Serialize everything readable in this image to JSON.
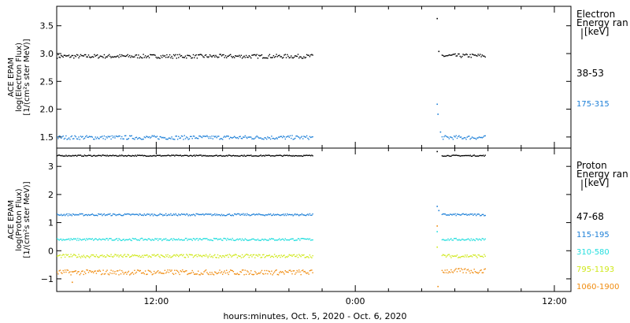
{
  "xlabel": "hours:minutes, Oct.  5, 2020 - Oct.  6, 2020",
  "colors": {
    "black": "#000000",
    "blue": "#1e80d8",
    "cyan": "#22dede",
    "yellow": "#cfe81a",
    "orange": "#f08c10"
  },
  "chart_data": [
    {
      "type": "scatter",
      "panel": "electron",
      "ylabel_lines": [
        "ACE EPAM",
        "log(Electron Flux)",
        "[1/(cm²s ster MeV)]"
      ],
      "ylim": [
        1.3,
        3.85
      ],
      "yticks": [
        1.5,
        2.0,
        2.5,
        3.0,
        3.5
      ],
      "ytick_labels": [
        "1.5",
        "2.0",
        "2.5",
        "3.0",
        "3.5"
      ],
      "xlim": [
        6.0,
        37.0
      ],
      "xticks": [
        12,
        24,
        36
      ],
      "xtick_labels": [
        "12:00",
        "0:00",
        "12:00"
      ],
      "legend_title": [
        "Electron",
        "Energy ran",
        "[keV]"
      ],
      "series": [
        {
          "name": "38-53",
          "color": "#000000",
          "segments": [
            {
              "x_start": 6.0,
              "x_end": 21.4,
              "mean": 2.96,
              "spread": 0.035
            },
            {
              "x_start": 29.2,
              "x_end": 31.8,
              "mean": 2.97,
              "spread": 0.035
            }
          ],
          "extra_points": [
            {
              "x": 28.9,
              "y": 3.64
            },
            {
              "x": 29.0,
              "y": 3.05
            }
          ]
        },
        {
          "name": "175-315",
          "color": "#1e80d8",
          "segments": [
            {
              "x_start": 6.0,
              "x_end": 21.4,
              "mean": 1.5,
              "spread": 0.035
            },
            {
              "x_start": 29.2,
              "x_end": 31.8,
              "mean": 1.5,
              "spread": 0.035
            }
          ],
          "extra_points": [
            {
              "x": 28.9,
              "y": 2.1
            },
            {
              "x": 28.95,
              "y": 1.92
            },
            {
              "x": 29.1,
              "y": 1.6
            }
          ]
        }
      ]
    },
    {
      "type": "scatter",
      "panel": "proton",
      "ylabel_lines": [
        "ACE EPAM",
        "log(Proton Flux)",
        "[1/(cm²s ster MeV)]"
      ],
      "ylim": [
        -1.45,
        3.65
      ],
      "yticks": [
        -1,
        0,
        1,
        2,
        3
      ],
      "ytick_labels": [
        "−1",
        "0",
        "1",
        "2",
        "3"
      ],
      "xlim": [
        6.0,
        37.0
      ],
      "xticks": [
        12,
        24,
        36
      ],
      "xtick_labels": [
        "12:00",
        "0:00",
        "12:00"
      ],
      "legend_title": [
        "Proton",
        "Energy ran",
        "[keV]"
      ],
      "series": [
        {
          "name": "47-68",
          "color": "#000000",
          "segments": [
            {
              "x_start": 6.0,
              "x_end": 21.4,
              "mean": 3.4,
              "spread": 0.02
            },
            {
              "x_start": 29.2,
              "x_end": 31.8,
              "mean": 3.4,
              "spread": 0.02
            }
          ],
          "extra_points": [
            {
              "x": 28.9,
              "y": 3.55
            }
          ]
        },
        {
          "name": "115-195",
          "color": "#1e80d8",
          "segments": [
            {
              "x_start": 6.0,
              "x_end": 21.4,
              "mean": 1.3,
              "spread": 0.035
            },
            {
              "x_start": 29.2,
              "x_end": 31.8,
              "mean": 1.3,
              "spread": 0.035
            }
          ],
          "extra_points": [
            {
              "x": 28.9,
              "y": 1.6
            },
            {
              "x": 29.0,
              "y": 1.45
            }
          ]
        },
        {
          "name": "310-580",
          "color": "#22dede",
          "segments": [
            {
              "x_start": 6.0,
              "x_end": 21.4,
              "mean": 0.42,
              "spread": 0.04
            },
            {
              "x_start": 29.2,
              "x_end": 31.8,
              "mean": 0.42,
              "spread": 0.04
            }
          ],
          "extra_points": [
            {
              "x": 28.9,
              "y": 0.7
            }
          ]
        },
        {
          "name": "795-1193",
          "color": "#cfe81a",
          "segments": [
            {
              "x_start": 6.0,
              "x_end": 21.4,
              "mean": -0.17,
              "spread": 0.06
            },
            {
              "x_start": 29.2,
              "x_end": 31.8,
              "mean": -0.17,
              "spread": 0.06
            }
          ],
          "extra_points": [
            {
              "x": 28.9,
              "y": 0.15
            }
          ]
        },
        {
          "name": "1060-1900",
          "color": "#f08c10",
          "segments": [
            {
              "x_start": 6.0,
              "x_end": 21.4,
              "mean": -0.75,
              "spread": 0.09
            },
            {
              "x_start": 29.2,
              "x_end": 31.8,
              "mean": -0.7,
              "spread": 0.09
            }
          ],
          "extra_points": [
            {
              "x": 28.9,
              "y": 0.9
            },
            {
              "x": 28.95,
              "y": -1.25
            },
            {
              "x": 6.9,
              "y": -1.1
            }
          ]
        }
      ]
    }
  ]
}
